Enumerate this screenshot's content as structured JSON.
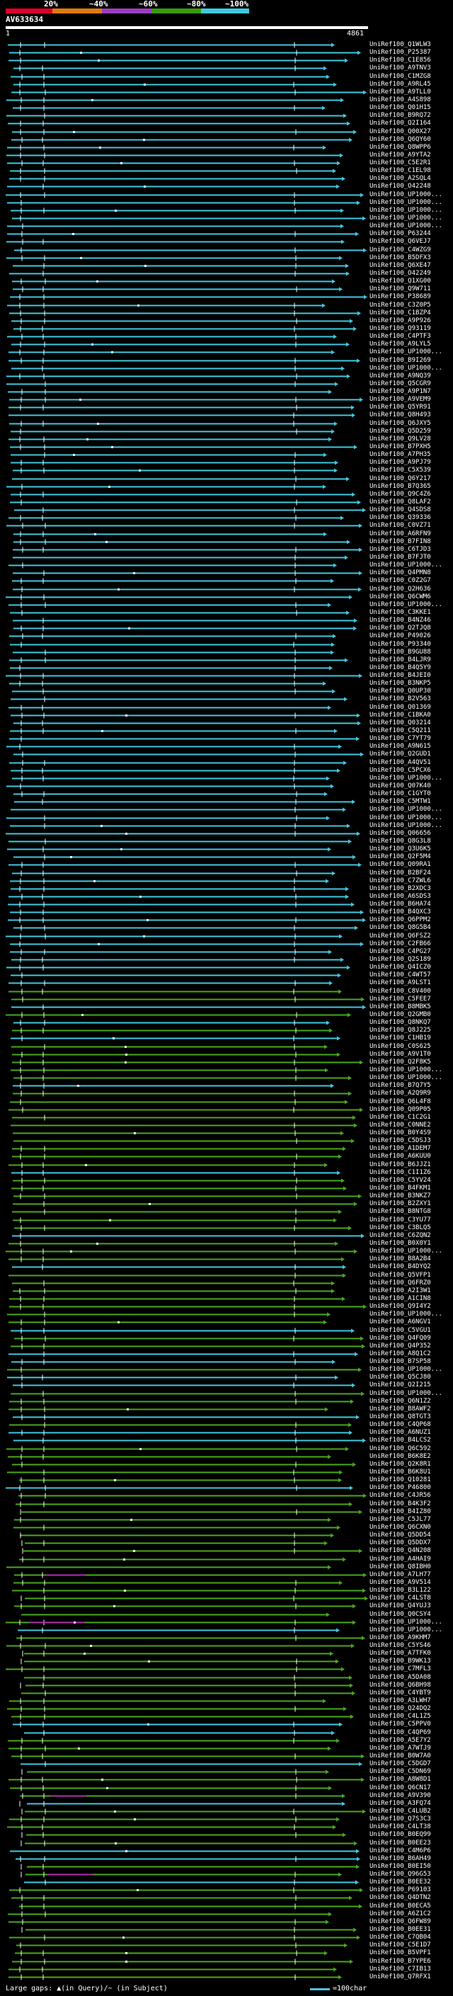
{
  "header": {
    "scale_labels": [
      "20%",
      "~40%",
      "~60%",
      "~80%",
      "~100%"
    ],
    "scale_colors": [
      "#e0002a",
      "#e07a10",
      "#9a3ec0",
      "#3a9a10",
      "#40c8e0"
    ],
    "query_name": "AV633634",
    "query_start": "1",
    "query_end": "4861"
  },
  "colors": {
    "cyan": "#40c8e0",
    "green": "#4aa81c",
    "magenta": "#b030b0",
    "white": "#ffffff"
  },
  "hits": [
    "UniRef100_Q1WLW3",
    "UniRef100_P25387",
    "UniRef100_C1E856",
    "UniRef100_A9TNV3",
    "UniRef100_C1MZG8",
    "UniRef100_A9RL45",
    "UniRef100_A9TLL0",
    "UniRef100_A4S898",
    "UniRef100_Q01H15",
    "UniRef100_B9RQ72",
    "UniRef100_Q2I164",
    "UniRef100_Q00X27",
    "UniRef100_Q6QY60",
    "UniRef100_Q8WPP6",
    "UniRef100_A9YTA2",
    "UniRef100_C5E2R1",
    "UniRef100_C1EL98",
    "UniRef100_A2SQL4",
    "UniRef100_O42248",
    "UniRef100_UP1000...",
    "UniRef100_UP1000...",
    "UniRef100_UP1000...",
    "UniRef100_UP1000...",
    "UniRef100_UP1000...",
    "UniRef100_P63244",
    "UniRef100_Q6VEJ7",
    "UniRef100_C4WZG9",
    "UniRef100_B5DFX3",
    "UniRef100_Q6XE47",
    "UniRef100_O42249",
    "UniRef100_Q1XG00",
    "UniRef100_Q9W711",
    "UniRef100_P38689",
    "UniRef100_C3Z0P5",
    "UniRef100_C1BZP4",
    "UniRef100_A9P926",
    "UniRef100_Q93119",
    "UniRef100_C4PTF3",
    "UniRef100_A9LYL5",
    "UniRef100_UP1000...",
    "UniRef100_B9I269",
    "UniRef100_UP1000...",
    "UniRef100_A9NQ39",
    "UniRef100_Q5CGR9",
    "UniRef100_A9P1N7",
    "UniRef100_A9VEM9",
    "UniRef100_Q5YR91",
    "UniRef100_Q8H493",
    "UniRef100_Q6JXY5",
    "UniRef100_Q5D259",
    "UniRef100_Q9LV28",
    "UniRef100_B7PXH5",
    "UniRef100_A7PH35",
    "UniRef100_A9PJ79",
    "UniRef100_C5X539",
    "UniRef100_Q6Y217",
    "UniRef100_B7Q365",
    "UniRef100_Q9C4Z6",
    "UniRef100_Q8LAF2",
    "UniRef100_Q4SDS8",
    "UniRef100_Q39336",
    "UniRef100_C0VZ71",
    "UniRef100_A6RFN9",
    "UniRef100_B7FIN8",
    "UniRef100_C6TJD3",
    "UniRef100_B7FJT0",
    "UniRef100_UP1000...",
    "UniRef100_Q4PMN8",
    "UniRef100_C0Z2G7",
    "UniRef100_Q2H636",
    "UniRef100_Q6CWM6",
    "UniRef100_UP1000...",
    "UniRef100_C3KKE1",
    "UniRef100_B4NZ46",
    "UniRef100_Q2TJQ8",
    "UniRef100_P49026",
    "UniRef100_P93340",
    "UniRef100_B9GU88",
    "UniRef100_B4LJR9",
    "UniRef100_B4Q5Y9",
    "UniRef100_B4JEI0",
    "UniRef100_B3NKP5",
    "UniRef100_Q0UP30",
    "UniRef100_B2V563",
    "UniRef100_Q01369",
    "UniRef100_C1BKA0",
    "UniRef100_Q03214",
    "UniRef100_C5Q211",
    "UniRef100_C7YT79",
    "UniRef100_A9N615",
    "UniRef100_Q2GUD1",
    "UniRef100_A4QV51",
    "UniRef100_C5PCX6",
    "UniRef100_UP1000...",
    "UniRef100_Q07K40",
    "UniRef100_C1GYT0",
    "UniRef100_C5MTW1",
    "UniRef100_UP1000...",
    "UniRef100_UP1000...",
    "UniRef100_UP1000...",
    "UniRef100_Q06656",
    "UniRef100_Q8G3L8",
    "UniRef100_Q3U6K5",
    "UniRef100_Q2F5M4",
    "UniRef100_Q09RA1",
    "UniRef100_B2BF24",
    "UniRef100_C7ZWL6",
    "UniRef100_B2XDC3",
    "UniRef100_A6SDS3",
    "UniRef100_B6HA74",
    "UniRef100_B4QXC3",
    "UniRef100_Q6PPM2",
    "UniRef100_Q8G5B4",
    "UniRef100_Q6FSZ2",
    "UniRef100_C2FB66",
    "UniRef100_C4PG27",
    "UniRef100_Q2S189",
    "UniRef100_Q4ICZ0",
    "UniRef100_C4WT57",
    "UniRef100_A9LST1",
    "UniRef100_C8V400",
    "UniRef100_C5FEE7",
    "UniRef100_B8MBK5",
    "UniRef100_Q2GMB0",
    "UniRef100_Q8NKQ7",
    "UniRef100_Q8J225",
    "UniRef100_C1HB19",
    "UniRef100_C0S625",
    "UniRef100_A9V1T0",
    "UniRef100_Q2F8K5",
    "UniRef100_UP1000...",
    "UniRef100_UP1000...",
    "UniRef100_B7Q7Y5",
    "UniRef100_A2Q9R9",
    "UniRef100_Q6L4F8",
    "UniRef100_Q09P05",
    "UniRef100_C1C2G1",
    "UniRef100_C0NNE2",
    "UniRef100_B0Y4S9",
    "UniRef100_C5DSJ3",
    "UniRef100_A1DEM7",
    "UniRef100_A6KUU0",
    "UniRef100_B6JJZ1",
    "UniRef100_C1I1Z6",
    "UniRef100_C5YV24",
    "UniRef100_B4FKM1",
    "UniRef100_B3NKZ7",
    "UniRef100_B2ZXY1",
    "UniRef100_B8NTG8",
    "UniRef100_C3YU77",
    "UniRef100_C3BLQ5",
    "UniRef100_C6ZQN2",
    "UniRef100_B0X0Y1",
    "UniRef100_UP1000...",
    "UniRef100_B8A2B4",
    "UniRef100_B4DYQ2",
    "UniRef100_Q5VFP1",
    "UniRef100_Q6FRZ0",
    "UniRef100_A2I3W1",
    "UniRef100_A1CIN8",
    "UniRef100_Q9I4Y2",
    "UniRef100_UP1000...",
    "UniRef100_A6NGV1",
    "UniRef100_C5VGU1",
    "UniRef100_Q4FQ09",
    "UniRef100_Q4P352",
    "UniRef100_A8Q1C2",
    "UniRef100_B7SP58",
    "UniRef100_UP1000...",
    "UniRef100_Q5CJ80",
    "UniRef100_Q2I215",
    "UniRef100_UP1000...",
    "UniRef100_Q6N1Z2",
    "UniRef100_B8AWF2",
    "UniRef100_Q8TGT3",
    "UniRef100_C4QP68",
    "UniRef100_A6NUZ1",
    "UniRef100_B4LCS2",
    "UniRef100_Q6C592",
    "UniRef100_B6K8E2",
    "UniRef100_Q2K8R1",
    "UniRef100_B6K8U1",
    "UniRef100_Q10281",
    "UniRef100_P46800",
    "UniRef100_C4JR56",
    "UniRef100_B4K3F2",
    "UniRef100_B4IZ80",
    "UniRef100_C5JL77",
    "UniRef100_Q6CXN0",
    "UniRef100_Q5DD54",
    "UniRef100_Q5DDX7",
    "UniRef100_Q4N208",
    "UniRef100_A4HAI9",
    "UniRef100_Q8IBH0",
    "UniRef100_A7LH77",
    "UniRef100_A9V514",
    "UniRef100_B3L122",
    "UniRef100_C4LST8",
    "UniRef100_Q4YUJ3",
    "UniRef100_Q0CSY4",
    "UniRef100_UP1000...",
    "UniRef100_UP1000...",
    "UniRef100_A9KHM7",
    "UniRef100_C5YS46",
    "UniRef100_A7TFK0",
    "UniRef100_B9WK13",
    "UniRef100_C7MFL3",
    "UniRef100_A5DA08",
    "UniRef100_Q6BH98",
    "UniRef100_C4YBT9",
    "UniRef100_A3LWH7",
    "UniRef100_Q24DQ2",
    "UniRef100_C4L1Z5",
    "UniRef100_C5PPV0",
    "UniRef100_C4QP69",
    "UniRef100_A5E7Y2",
    "UniRef100_A7WTJ9",
    "UniRef100_B0W7A0",
    "UniRef100_C5DGD7",
    "UniRef100_C5DN69",
    "UniRef100_A8W8D1",
    "UniRef100_Q6CN17",
    "UniRef100_A9V390",
    "UniRef100_A3FQ74",
    "UniRef100_C4LUB2",
    "UniRef100_Q7S3C3",
    "UniRef100_C4LT38",
    "UniRef100_B0EQ99",
    "UniRef100_B0EE23",
    "UniRef100_C4M6P6",
    "UniRef100_B6AH49",
    "UniRef100_B0EI50",
    "UniRef100_Q96G53",
    "UniRef100_B0EE32",
    "UniRef100_P69103",
    "UniRef100_Q4DTN2",
    "UniRef100_B0ECA5",
    "UniRef100_A6Z1C2",
    "UniRef100_Q6FW89",
    "UniRef100_B0EE31",
    "UniRef100_C7QB04",
    "UniRef100_C5E1D7",
    "UniRef100_B5VPF1",
    "UniRef100_B7YPE6",
    "UniRef100_C7IB13",
    "UniRef100_Q7RFX1"
  ],
  "footer": {
    "gap_legend": "Large gaps: ▲(in Query)/~ (in Subject)",
    "scale_legend": "=100char"
  }
}
